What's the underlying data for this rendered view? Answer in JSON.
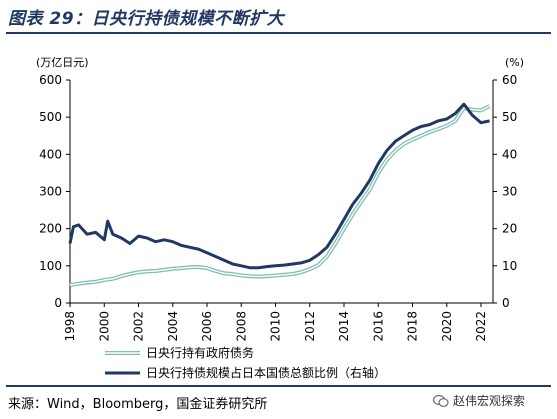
{
  "header": {
    "title": "图表 29：日央行持债规模不断扩大"
  },
  "footer": {
    "source": "来源：Wind，Bloomberg，国金证券研究所",
    "watermark": "赵伟宏观探索"
  },
  "chart_data": {
    "type": "line",
    "left_axis_unit": "(万亿日元)",
    "right_axis_unit": "(%)",
    "ylim_left": [
      0,
      600
    ],
    "ylim_right": [
      0,
      60
    ],
    "y_ticks_left": [
      0,
      100,
      200,
      300,
      400,
      500,
      600
    ],
    "y_ticks_right": [
      0,
      10,
      20,
      30,
      40,
      50,
      60
    ],
    "x_ticks": [
      "1998",
      "2000",
      "2002",
      "2004",
      "2006",
      "2008",
      "2010",
      "2012",
      "2014",
      "2016",
      "2018",
      "2020",
      "2022"
    ],
    "xlim": [
      1998,
      2022.7
    ],
    "grid": false,
    "legend_position": "bottom",
    "series": [
      {
        "name": "日央行持有政府债务",
        "axis": "left",
        "color": "#7fbfb3",
        "x": [
          1998,
          1998.5,
          1999,
          1999.5,
          2000,
          2000.5,
          2001,
          2001.5,
          2002,
          2002.5,
          2003,
          2003.5,
          2004,
          2004.5,
          2005,
          2005.5,
          2006,
          2006.5,
          2007,
          2007.5,
          2008,
          2008.5,
          2009,
          2009.5,
          2010,
          2010.5,
          2011,
          2011.5,
          2012,
          2012.5,
          2013,
          2013.5,
          2014,
          2014.5,
          2015,
          2015.5,
          2016,
          2016.5,
          2017,
          2017.5,
          2018,
          2018.5,
          2019,
          2019.5,
          2020,
          2020.5,
          2021,
          2021.5,
          2022,
          2022.5
        ],
        "values": [
          48,
          52,
          55,
          57,
          62,
          65,
          72,
          78,
          83,
          85,
          86,
          89,
          92,
          94,
          96,
          97,
          94,
          86,
          80,
          78,
          74,
          72,
          71,
          72,
          74,
          76,
          78,
          83,
          91,
          102,
          125,
          160,
          200,
          238,
          272,
          305,
          350,
          385,
          410,
          428,
          440,
          450,
          460,
          468,
          477,
          490,
          525,
          520,
          518,
          530
        ]
      },
      {
        "name": "日央行持债规模占日本国债总额比例（右轴）",
        "axis": "right",
        "color": "#1f3864",
        "x": [
          1998,
          1998.2,
          1998.5,
          1999,
          1999.5,
          2000,
          2000.2,
          2000.5,
          2001,
          2001.5,
          2002,
          2002.5,
          2003,
          2003.5,
          2004,
          2004.5,
          2005,
          2005.5,
          2006,
          2006.5,
          2007,
          2007.5,
          2008,
          2008.5,
          2009,
          2009.5,
          2010,
          2010.5,
          2011,
          2011.5,
          2012,
          2012.5,
          2013,
          2013.5,
          2014,
          2014.5,
          2015,
          2015.5,
          2016,
          2016.5,
          2017,
          2017.5,
          2018,
          2018.5,
          2019,
          2019.5,
          2020,
          2020.5,
          2021,
          2021.5,
          2022,
          2022.5
        ],
        "values": [
          16,
          20.5,
          21,
          18.5,
          19,
          17,
          22,
          18.5,
          17.5,
          16,
          18,
          17.5,
          16.5,
          17,
          16.5,
          15.5,
          15,
          14.5,
          13.5,
          12.5,
          11.5,
          10.5,
          10,
          9.5,
          9.5,
          9.8,
          10,
          10.2,
          10.5,
          10.8,
          11.5,
          13,
          15,
          18.5,
          22.5,
          26.5,
          29.5,
          33,
          37.5,
          41,
          43.5,
          45,
          46.5,
          47.5,
          48,
          49,
          49.5,
          51,
          53.5,
          50.5,
          48.5,
          49
        ]
      }
    ]
  }
}
